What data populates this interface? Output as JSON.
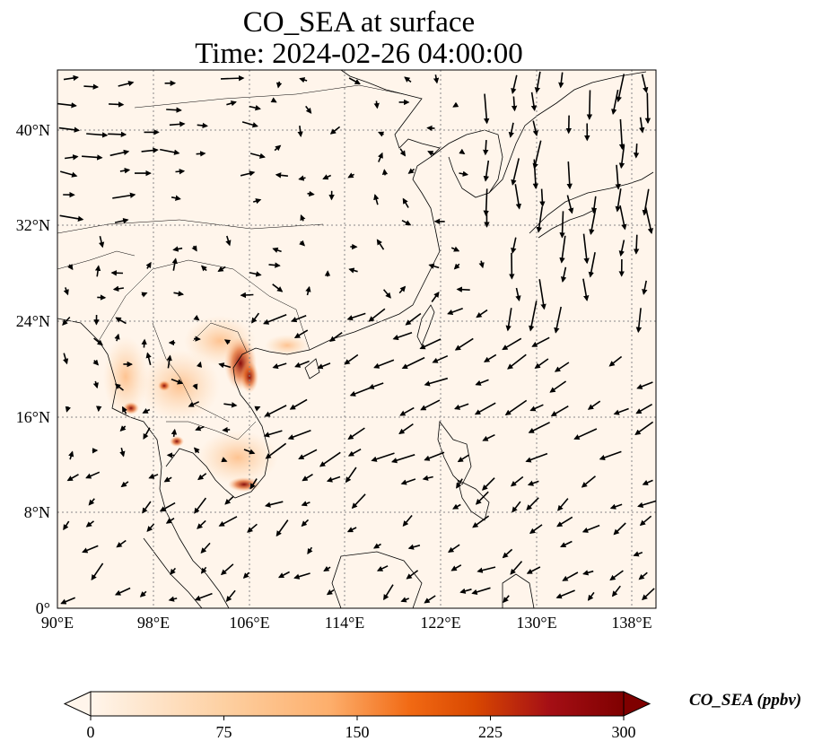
{
  "title": {
    "line1": "CO_SEA at surface",
    "line2": "Time: 2024-02-26 04:00:00"
  },
  "map": {
    "lon_range": [
      90,
      140
    ],
    "lat_range": [
      0,
      45
    ],
    "lon_ticks": [
      "90°E",
      "98°E",
      "106°E",
      "114°E",
      "122°E",
      "130°E",
      "138°E"
    ],
    "lat_ticks": [
      "0°",
      "8°N",
      "16°N",
      "24°N",
      "32°N",
      "40°N"
    ],
    "gridlines": true,
    "background_color": "#fff5eb",
    "plume_color": "#7f0000"
  },
  "colorbar": {
    "label": "CO_SEA (ppbv)",
    "ticks": [
      "0",
      "75",
      "150",
      "225",
      "300"
    ],
    "range": [
      0,
      300
    ],
    "extend": "both",
    "colormap": [
      "#fff5eb",
      "#fdd0a2",
      "#fdae6b",
      "#f16913",
      "#d94801",
      "#a50f15",
      "#7f0000"
    ]
  }
}
